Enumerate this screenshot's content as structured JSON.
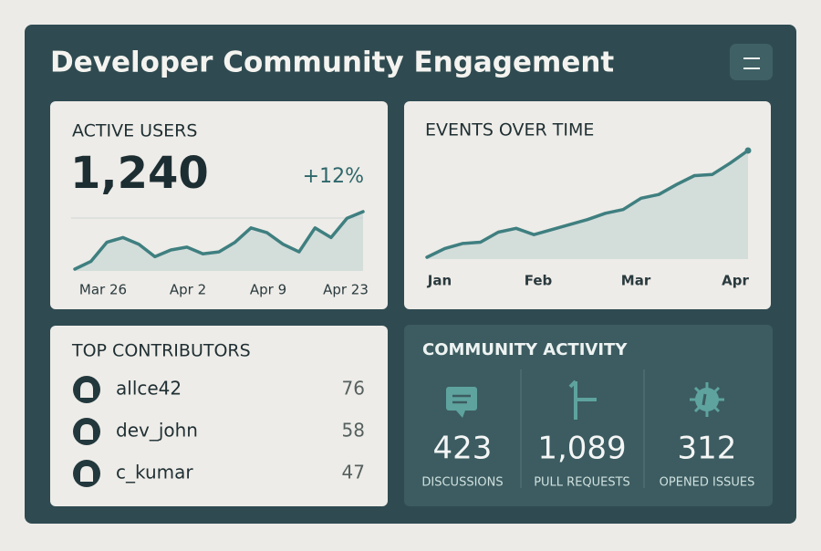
{
  "header": {
    "title": "Developer Community Engagement"
  },
  "active_users": {
    "title": "ACTIVE USERS",
    "value": "1,240",
    "change": "+12%",
    "chart": {
      "type": "area",
      "x_labels": [
        "Mar 26",
        "Apr 2",
        "Apr 9",
        "Apr 23"
      ],
      "values": [
        2,
        10,
        30,
        35,
        28,
        15,
        22,
        25,
        18,
        20,
        30,
        45,
        40,
        28,
        20,
        45,
        35,
        55,
        62
      ]
    }
  },
  "events_over_time": {
    "title": "EVENTS OVER TIME",
    "chart": {
      "type": "area",
      "x_labels": [
        "Jan",
        "Feb",
        "Mar",
        "Apr"
      ],
      "values": [
        5,
        12,
        16,
        17,
        25,
        28,
        23,
        27,
        31,
        35,
        40,
        43,
        52,
        55,
        63,
        70,
        71,
        80,
        90
      ]
    }
  },
  "top_contributors": {
    "title": "TOP CONTRIBUTORS",
    "rows": [
      {
        "name": "allce42",
        "count": 76
      },
      {
        "name": "dev_john",
        "count": 58
      },
      {
        "name": "c_kumar",
        "count": 47
      }
    ]
  },
  "community_activity": {
    "title": "COMMUNITY ACTIVITY",
    "items": [
      {
        "value": "423",
        "label": "DISCUSSIONS"
      },
      {
        "value": "1,089",
        "label": "PULL REQUESTS"
      },
      {
        "value": "312",
        "label": "OPENED ISSUES"
      }
    ]
  }
}
